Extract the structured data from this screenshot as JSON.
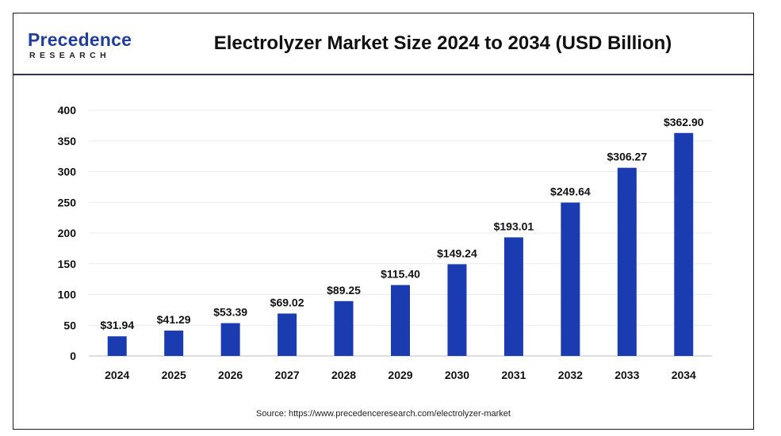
{
  "logo": {
    "main": "Precedence",
    "sub": "RESEARCH"
  },
  "source": "Source: https://www.precedenceresearch.com/electrolyzer-market",
  "colors": {
    "bar": "#1a3cb0",
    "header_rule": "#2b3350",
    "gridline": "#ececec"
  },
  "chart_data": {
    "type": "bar",
    "title": "Electrolyzer Market Size 2024 to 2034 (USD Billion)",
    "xlabel": "",
    "ylabel": "",
    "categories": [
      "2024",
      "2025",
      "2026",
      "2027",
      "2028",
      "2029",
      "2030",
      "2031",
      "2032",
      "2033",
      "2034"
    ],
    "values": [
      31.94,
      41.29,
      53.39,
      69.02,
      89.25,
      115.4,
      149.24,
      193.01,
      249.64,
      306.27,
      362.9
    ],
    "data_labels": [
      "$31.94",
      "$41.29",
      "$53.39",
      "$69.02",
      "$89.25",
      "$115.40",
      "$149.24",
      "$193.01",
      "$249.64",
      "$306.27",
      "$362.90"
    ],
    "yticks": [
      0,
      50,
      100,
      150,
      200,
      250,
      300,
      350,
      400
    ],
    "ylim": [
      0,
      400
    ],
    "grid": true,
    "legend": "none"
  }
}
